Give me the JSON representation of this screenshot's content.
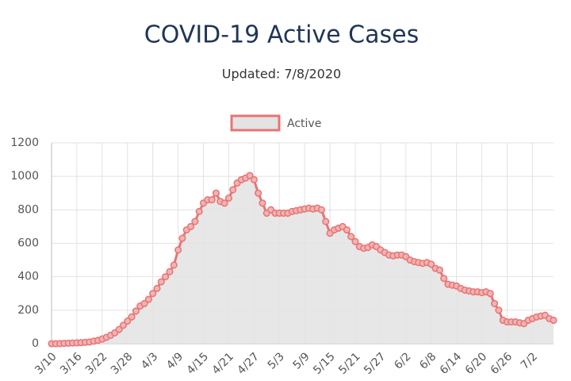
{
  "chart_data": {
    "type": "line",
    "title": "COVID-19 Active Cases",
    "subtitle": "Updated: 7/8/2020",
    "categories": [
      "3/10",
      null,
      null,
      null,
      null,
      null,
      "3/16",
      null,
      null,
      null,
      null,
      null,
      "3/22",
      null,
      null,
      null,
      null,
      null,
      "3/28",
      null,
      null,
      null,
      null,
      null,
      "4/3",
      null,
      null,
      null,
      null,
      null,
      "4/9",
      null,
      null,
      null,
      null,
      null,
      "4/15",
      null,
      null,
      null,
      null,
      null,
      "4/21",
      null,
      null,
      null,
      null,
      null,
      "4/27",
      null,
      null,
      null,
      null,
      null,
      "5/3",
      null,
      null,
      null,
      null,
      null,
      "5/9",
      null,
      null,
      null,
      null,
      null,
      "5/15",
      null,
      null,
      null,
      null,
      null,
      "5/21",
      null,
      null,
      null,
      null,
      null,
      "5/27",
      null,
      null,
      null,
      null,
      null,
      "6/2",
      null,
      null,
      null,
      null,
      null,
      "6/8",
      null,
      null,
      null,
      null,
      null,
      "6/14",
      null,
      null,
      null,
      null,
      null,
      "6/20",
      null,
      null,
      null,
      null,
      null,
      "6/26",
      null,
      null,
      null,
      null,
      null,
      "7/2",
      null,
      null,
      null,
      null,
      null
    ],
    "series": [
      {
        "name": "Active",
        "color": "#e87474",
        "fill": "#e3e3e3",
        "values": [
          0,
          0,
          1,
          2,
          3,
          4,
          5,
          6,
          8,
          10,
          15,
          20,
          28,
          38,
          50,
          65,
          85,
          110,
          135,
          160,
          195,
          225,
          240,
          265,
          300,
          330,
          370,
          400,
          430,
          470,
          560,
          630,
          680,
          700,
          730,
          790,
          840,
          860,
          860,
          900,
          850,
          840,
          870,
          920,
          960,
          980,
          990,
          1005,
          980,
          900,
          840,
          780,
          800,
          780,
          780,
          780,
          780,
          790,
          795,
          800,
          805,
          810,
          805,
          810,
          800,
          730,
          660,
          680,
          690,
          700,
          680,
          640,
          610,
          580,
          570,
          575,
          590,
          580,
          560,
          545,
          530,
          525,
          530,
          530,
          520,
          500,
          490,
          485,
          480,
          485,
          475,
          450,
          440,
          390,
          355,
          350,
          345,
          330,
          320,
          315,
          310,
          310,
          305,
          310,
          300,
          240,
          200,
          140,
          130,
          130,
          130,
          125,
          120,
          140,
          150,
          160,
          165,
          170,
          150,
          140
        ]
      }
    ],
    "ylim": [
      0,
      1200
    ],
    "yticks": [
      0,
      200,
      400,
      600,
      800,
      1000,
      1200
    ],
    "grid": true
  }
}
